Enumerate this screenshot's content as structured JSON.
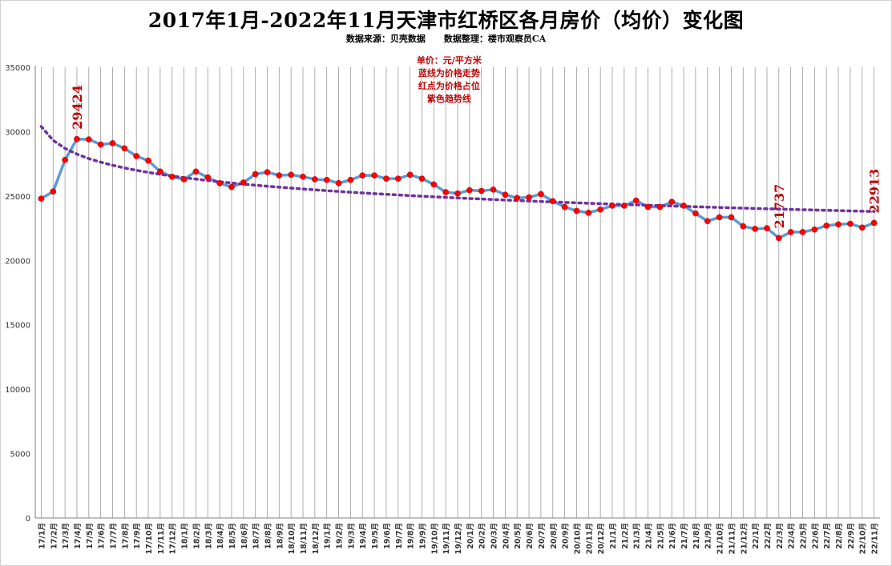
{
  "chart_data": {
    "type": "line",
    "title": "2017年1月-2022年11月天津市红桥区各月房价（均价）变化图",
    "source_note": "数据来源：贝壳数据      数据整理：楼市观察员CA",
    "notes": [
      "单价：元/平方米",
      "蓝线为价格走势",
      "红点为价格占位",
      "紫色趋势线"
    ],
    "ylim": [
      0,
      35000
    ],
    "yticks": [
      0,
      5000,
      10000,
      15000,
      20000,
      25000,
      30000,
      35000
    ],
    "grid": "vertical",
    "categories": [
      "17/1月",
      "17/2月",
      "17/3月",
      "17/4月",
      "17/5月",
      "17/6月",
      "17/7月",
      "17/8月",
      "17/9月",
      "17/10月",
      "17/11月",
      "17/12月",
      "18/1月",
      "18/2月",
      "18/3月",
      "18/4月",
      "18/5月",
      "18/6月",
      "18/7月",
      "18/8月",
      "18/9月",
      "18/10月",
      "18/11月",
      "18/12月",
      "19/1月",
      "19/2月",
      "19/3月",
      "19/4月",
      "19/5月",
      "19/6月",
      "19/7月",
      "19/8月",
      "19/9月",
      "19/10月",
      "19/11月",
      "19/12月",
      "20/1月",
      "20/2月",
      "20/3月",
      "20/4月",
      "20/5月",
      "20/6月",
      "20/7月",
      "20/8月",
      "20/9月",
      "20/10月",
      "20/11月",
      "20/12月",
      "21/1月",
      "21/2月",
      "21/3月",
      "21/4月",
      "21/5月",
      "21/6月",
      "21/7月",
      "21/8月",
      "21/9月",
      "21/10月",
      "21/11月",
      "21/12月",
      "22/1月",
      "22/2月",
      "22/3月",
      "22/4月",
      "22/5月",
      "22/6月",
      "22/7月",
      "22/8月",
      "22/9月",
      "22/10月",
      "22/11月"
    ],
    "series": [
      {
        "style": "line-with-markers",
        "line_color": "#5b9bd5",
        "marker_color": "#ff0000",
        "values": [
          24800,
          25350,
          27800,
          29424,
          29400,
          29000,
          29100,
          28700,
          28100,
          27750,
          26900,
          26500,
          26300,
          26900,
          26450,
          26000,
          25700,
          26050,
          26700,
          26850,
          26600,
          26650,
          26500,
          26300,
          26250,
          26000,
          26250,
          26600,
          26600,
          26350,
          26350,
          26650,
          26350,
          25900,
          25300,
          25200,
          25450,
          25400,
          25500,
          25100,
          24850,
          24900,
          25150,
          24600,
          24150,
          23850,
          23700,
          23950,
          24250,
          24250,
          24650,
          24150,
          24150,
          24550,
          24250,
          23650,
          23050,
          23350,
          23350,
          22650,
          22450,
          22500,
          21737,
          22200,
          22200,
          22400,
          22700,
          22800,
          22850,
          22550,
          22913
        ]
      },
      {
        "style": "trendline-dotted",
        "line_color": "#7030a0",
        "x_from": 1,
        "x_to": 71,
        "start_value": 30400,
        "end_value": 23800
      }
    ],
    "annotations": [
      {
        "category": "17/4月",
        "text": "29424"
      },
      {
        "category": "22/3月",
        "text": "21737"
      },
      {
        "category": "22/11月",
        "text": "22913"
      }
    ]
  }
}
